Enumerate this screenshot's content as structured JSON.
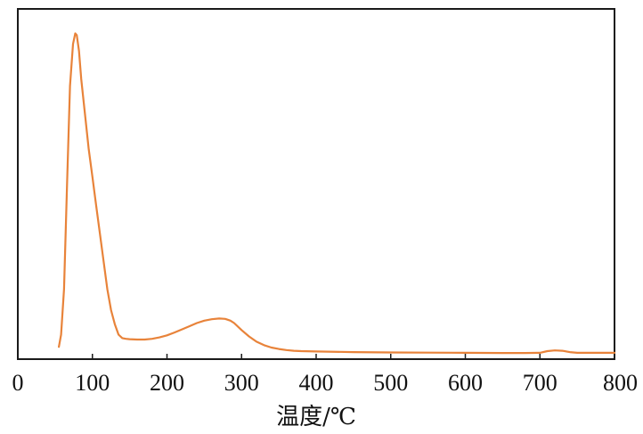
{
  "chart_data": {
    "type": "line",
    "title": "",
    "xlabel": "温度/℃",
    "ylabel": "",
    "xlim": [
      0,
      800
    ],
    "ylim": [
      0,
      100
    ],
    "x_ticks": [
      0,
      100,
      200,
      300,
      400,
      500,
      600,
      700,
      800
    ],
    "x_tick_labels": [
      "0",
      "100",
      "200",
      "300",
      "400",
      "500",
      "600",
      "700",
      "800"
    ],
    "y_ticks_shown": false,
    "grid": false,
    "legend": "none",
    "series": [
      {
        "color": "#E8833A",
        "x": [
          55,
          58,
          62,
          66,
          70,
          74,
          77,
          79,
          82,
          85,
          90,
          95,
          100,
          105,
          110,
          115,
          120,
          125,
          130,
          135,
          140,
          145,
          150,
          160,
          170,
          180,
          190,
          200,
          210,
          220,
          230,
          240,
          250,
          260,
          270,
          278,
          285,
          290,
          300,
          310,
          320,
          330,
          340,
          350,
          360,
          370,
          380,
          400,
          450,
          500,
          550,
          600,
          650,
          680,
          700,
          710,
          720,
          730,
          740,
          750,
          760,
          780,
          800
        ],
        "y": [
          3.5,
          7,
          20,
          50,
          78,
          90,
          93,
          92.5,
          88,
          80,
          70,
          60,
          52,
          44,
          36,
          28,
          20,
          14,
          10,
          7,
          6,
          5.8,
          5.7,
          5.6,
          5.6,
          5.8,
          6.2,
          6.8,
          7.6,
          8.5,
          9.4,
          10.3,
          11,
          11.4,
          11.6,
          11.5,
          11,
          10.3,
          8.3,
          6.5,
          5,
          4,
          3.3,
          2.9,
          2.6,
          2.4,
          2.3,
          2.2,
          2.0,
          1.9,
          1.85,
          1.8,
          1.75,
          1.75,
          1.8,
          2.3,
          2.5,
          2.4,
          2.0,
          1.8,
          1.8,
          1.8,
          1.8
        ]
      }
    ]
  }
}
